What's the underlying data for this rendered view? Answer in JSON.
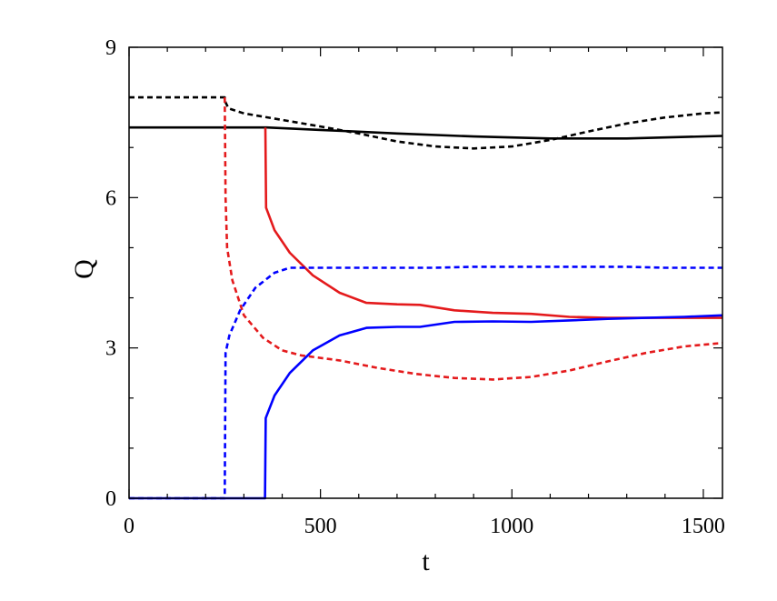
{
  "chart_data": {
    "type": "line",
    "title": "",
    "xlabel": "t",
    "ylabel": "Q",
    "xlim": [
      0,
      1550
    ],
    "ylim": [
      0,
      9
    ],
    "xticks": [
      0,
      500,
      1000,
      1500
    ],
    "yticks": [
      0,
      3,
      6,
      9
    ],
    "x_minor_step": 100,
    "y_minor_step": 1,
    "grid": false,
    "legend": "none",
    "series": [
      {
        "color": "#000000",
        "dash": "solid",
        "points": [
          [
            0,
            7.4
          ],
          [
            360,
            7.4
          ],
          [
            500,
            7.35
          ],
          [
            700,
            7.28
          ],
          [
            900,
            7.22
          ],
          [
            1100,
            7.18
          ],
          [
            1300,
            7.18
          ],
          [
            1550,
            7.23
          ]
        ]
      },
      {
        "color": "#000000",
        "dash": "dashed",
        "points": [
          [
            0,
            8.0
          ],
          [
            250,
            8.0
          ],
          [
            252,
            7.9
          ],
          [
            260,
            7.78
          ],
          [
            300,
            7.68
          ],
          [
            400,
            7.55
          ],
          [
            500,
            7.42
          ],
          [
            600,
            7.28
          ],
          [
            700,
            7.12
          ],
          [
            800,
            7.02
          ],
          [
            900,
            6.98
          ],
          [
            1000,
            7.02
          ],
          [
            1100,
            7.15
          ],
          [
            1200,
            7.32
          ],
          [
            1300,
            7.48
          ],
          [
            1400,
            7.6
          ],
          [
            1500,
            7.68
          ],
          [
            1550,
            7.7
          ]
        ]
      },
      {
        "color": "#e41a1c",
        "dash": "solid",
        "points": [
          [
            356,
            7.4
          ],
          [
            358,
            5.8
          ],
          [
            380,
            5.35
          ],
          [
            420,
            4.9
          ],
          [
            480,
            4.45
          ],
          [
            550,
            4.1
          ],
          [
            620,
            3.9
          ],
          [
            700,
            3.87
          ],
          [
            760,
            3.86
          ],
          [
            850,
            3.75
          ],
          [
            950,
            3.7
          ],
          [
            1050,
            3.68
          ],
          [
            1150,
            3.62
          ],
          [
            1250,
            3.6
          ],
          [
            1350,
            3.6
          ],
          [
            1450,
            3.6
          ],
          [
            1550,
            3.6
          ]
        ]
      },
      {
        "color": "#e41a1c",
        "dash": "dashed",
        "points": [
          [
            250,
            8.0
          ],
          [
            252,
            6.0
          ],
          [
            256,
            5.0
          ],
          [
            270,
            4.35
          ],
          [
            300,
            3.65
          ],
          [
            350,
            3.2
          ],
          [
            400,
            2.95
          ],
          [
            450,
            2.85
          ],
          [
            550,
            2.75
          ],
          [
            650,
            2.6
          ],
          [
            750,
            2.48
          ],
          [
            850,
            2.4
          ],
          [
            950,
            2.37
          ],
          [
            1050,
            2.42
          ],
          [
            1150,
            2.55
          ],
          [
            1250,
            2.73
          ],
          [
            1350,
            2.9
          ],
          [
            1450,
            3.03
          ],
          [
            1550,
            3.1
          ]
        ]
      },
      {
        "color": "#0000ff",
        "dash": "solid",
        "points": [
          [
            0,
            0
          ],
          [
            355,
            0
          ],
          [
            357,
            1.6
          ],
          [
            380,
            2.05
          ],
          [
            420,
            2.5
          ],
          [
            480,
            2.95
          ],
          [
            550,
            3.25
          ],
          [
            620,
            3.4
          ],
          [
            700,
            3.42
          ],
          [
            760,
            3.42
          ],
          [
            850,
            3.52
          ],
          [
            950,
            3.53
          ],
          [
            1050,
            3.52
          ],
          [
            1150,
            3.55
          ],
          [
            1250,
            3.58
          ],
          [
            1350,
            3.6
          ],
          [
            1450,
            3.62
          ],
          [
            1550,
            3.65
          ]
        ]
      },
      {
        "color": "#0000ff",
        "dash": "dashed",
        "points": [
          [
            0,
            0
          ],
          [
            250,
            0
          ],
          [
            252,
            2.9
          ],
          [
            262,
            3.25
          ],
          [
            290,
            3.75
          ],
          [
            330,
            4.2
          ],
          [
            380,
            4.5
          ],
          [
            420,
            4.6
          ],
          [
            500,
            4.6
          ],
          [
            600,
            4.6
          ],
          [
            700,
            4.6
          ],
          [
            800,
            4.6
          ],
          [
            900,
            4.62
          ],
          [
            1000,
            4.62
          ],
          [
            1100,
            4.62
          ],
          [
            1200,
            4.62
          ],
          [
            1300,
            4.62
          ],
          [
            1400,
            4.6
          ],
          [
            1550,
            4.6
          ]
        ]
      }
    ]
  }
}
